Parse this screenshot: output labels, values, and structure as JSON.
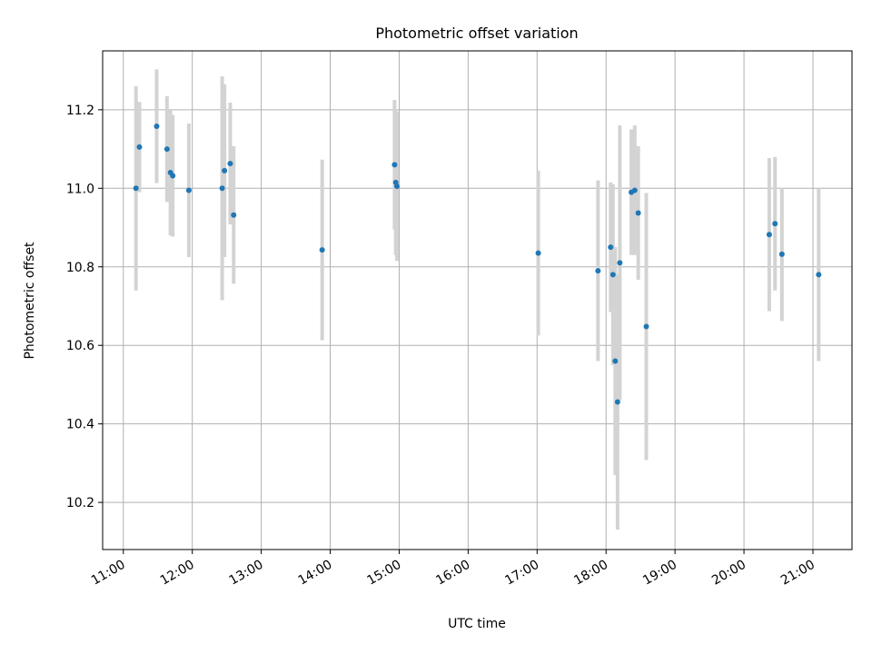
{
  "chart_data": {
    "type": "scatter",
    "title": "Photometric offset variation",
    "xlabel": "UTC time",
    "ylabel": "Photometric offset",
    "x_ticks": [
      "11:00",
      "12:00",
      "13:00",
      "14:00",
      "15:00",
      "16:00",
      "17:00",
      "18:00",
      "19:00",
      "20:00",
      "21:00"
    ],
    "y_ticks": [
      "10.2",
      "10.4",
      "10.6",
      "10.8",
      "11.0",
      "11.2"
    ],
    "xlim": [
      "10:42",
      "21:34"
    ],
    "ylim": [
      10.08,
      11.35
    ],
    "grid": true,
    "colors": {
      "point": "#1f77b4",
      "errorbar": "#d3d3d3",
      "grid": "#b0b0b0"
    },
    "points": [
      {
        "time": "11:11",
        "y": 11.0,
        "err": 0.26
      },
      {
        "time": "11:14",
        "y": 11.105,
        "err": 0.115
      },
      {
        "time": "11:29",
        "y": 11.158,
        "err": 0.145
      },
      {
        "time": "11:38",
        "y": 11.1,
        "err": 0.135
      },
      {
        "time": "11:41",
        "y": 11.04,
        "err": 0.16
      },
      {
        "time": "11:43",
        "y": 11.032,
        "err": 0.155
      },
      {
        "time": "11:57",
        "y": 10.995,
        "err": 0.17
      },
      {
        "time": "12:26",
        "y": 11.0,
        "err": 0.285
      },
      {
        "time": "12:28",
        "y": 11.045,
        "err": 0.22
      },
      {
        "time": "12:33",
        "y": 11.063,
        "err": 0.155
      },
      {
        "time": "12:36",
        "y": 10.932,
        "err": 0.175
      },
      {
        "time": "13:53",
        "y": 10.843,
        "err": 0.23
      },
      {
        "time": "14:56",
        "y": 11.06,
        "err": 0.165
      },
      {
        "time": "14:57",
        "y": 11.015,
        "err": 0.185
      },
      {
        "time": "14:58",
        "y": 11.005,
        "err": 0.19
      },
      {
        "time": "17:01",
        "y": 10.835,
        "err": 0.21
      },
      {
        "time": "17:53",
        "y": 10.79,
        "err": 0.23
      },
      {
        "time": "18:04",
        "y": 10.85,
        "err": 0.165
      },
      {
        "time": "18:06",
        "y": 10.78,
        "err": 0.23
      },
      {
        "time": "18:08",
        "y": 10.56,
        "err": 0.29
      },
      {
        "time": "18:10",
        "y": 10.456,
        "err": 0.325
      },
      {
        "time": "18:12",
        "y": 10.81,
        "err": 0.35
      },
      {
        "time": "18:22",
        "y": 10.99,
        "err": 0.16
      },
      {
        "time": "18:25",
        "y": 10.995,
        "err": 0.165
      },
      {
        "time": "18:28",
        "y": 10.937,
        "err": 0.17
      },
      {
        "time": "18:35",
        "y": 10.648,
        "err": 0.34
      },
      {
        "time": "20:22",
        "y": 10.882,
        "err": 0.195
      },
      {
        "time": "20:27",
        "y": 10.91,
        "err": 0.17
      },
      {
        "time": "20:33",
        "y": 10.832,
        "err": 0.17
      },
      {
        "time": "21:05",
        "y": 10.78,
        "err": 0.22
      }
    ]
  }
}
